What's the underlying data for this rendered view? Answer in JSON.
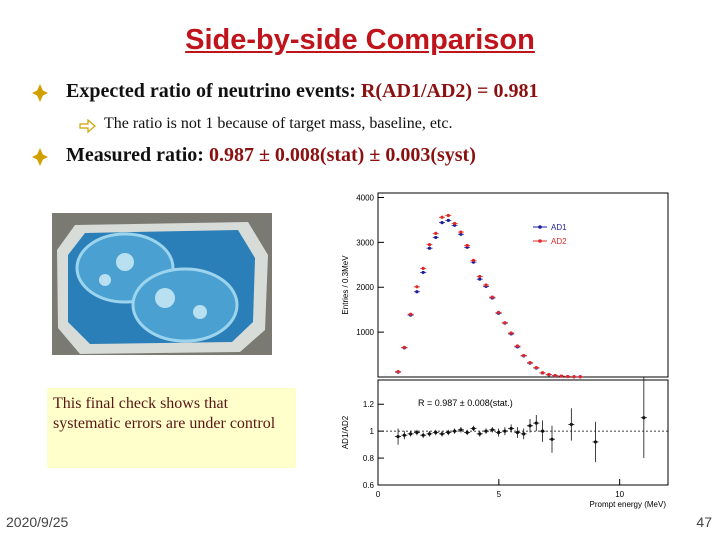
{
  "title": "Side-by-side Comparison",
  "bullets": [
    {
      "text": "Expected ratio of neutrino events:",
      "highlight": "R(AD1/AD2) = 0.981",
      "sub": [
        "The ratio is not 1 because of target mass, baseline, etc."
      ]
    },
    {
      "text": "Measured ratio:",
      "highlight": "0.987 ± 0.008(stat) ± 0.003(syst)"
    }
  ],
  "callout": "This final check shows that systematic errors are under control",
  "footer": {
    "date": "2020/9/25",
    "page": "47"
  },
  "chart_data": [
    {
      "type": "scatter",
      "ylabel": "Entries / 0.3MeV",
      "xlim": [
        0,
        12
      ],
      "ylim": [
        0,
        4100
      ],
      "yticks": [
        1000,
        2000,
        3000,
        4000
      ],
      "series": [
        {
          "name": "AD1",
          "color": "#1c1c9c",
          "x": [
            0.83,
            1.09,
            1.35,
            1.61,
            1.87,
            2.13,
            2.39,
            2.65,
            2.91,
            3.17,
            3.43,
            3.69,
            3.95,
            4.21,
            4.47,
            4.73,
            4.99,
            5.25,
            5.51,
            5.77,
            6.03,
            6.29,
            6.55,
            6.81,
            7.07,
            7.33,
            7.59,
            7.85,
            8.11,
            8.37
          ],
          "values": [
            110,
            650,
            1380,
            1900,
            2330,
            2870,
            3110,
            3440,
            3490,
            3380,
            3180,
            2890,
            2560,
            2180,
            2020,
            1760,
            1420,
            1200,
            960,
            670,
            470,
            310,
            200,
            90,
            50,
            30,
            20,
            10,
            5,
            5
          ]
        },
        {
          "name": "AD2",
          "color": "#e02828",
          "x": [
            0.83,
            1.09,
            1.35,
            1.61,
            1.87,
            2.13,
            2.39,
            2.65,
            2.91,
            3.17,
            3.43,
            3.69,
            3.95,
            4.21,
            4.47,
            4.73,
            4.99,
            5.25,
            5.51,
            5.77,
            6.03,
            6.29,
            6.55,
            6.81,
            7.07,
            7.33,
            7.59,
            7.85,
            8.11,
            8.37
          ],
          "values": [
            120,
            660,
            1400,
            2010,
            2420,
            2950,
            3200,
            3560,
            3600,
            3420,
            3230,
            2930,
            2600,
            2240,
            2050,
            1780,
            1440,
            1210,
            980,
            690,
            480,
            320,
            210,
            95,
            55,
            30,
            20,
            10,
            5,
            5
          ]
        }
      ],
      "legend": "upper right"
    },
    {
      "type": "scatter",
      "ylabel": "AD1/AD2",
      "xlabel": "Prompt energy (MeV)",
      "annotation": "R = 0.987 ± 0.008(stat.)",
      "xlim": [
        0,
        12
      ],
      "ylim": [
        0.6,
        1.38
      ],
      "xticks": [
        0,
        5,
        10
      ],
      "yticks": [
        0.6,
        0.8,
        1,
        1.2
      ],
      "refline": 1,
      "series": [
        {
          "name": "AD1/AD2",
          "color": "#111111",
          "x": [
            0.83,
            1.09,
            1.35,
            1.61,
            1.87,
            2.13,
            2.39,
            2.65,
            2.91,
            3.17,
            3.43,
            3.69,
            3.95,
            4.21,
            4.47,
            4.73,
            4.99,
            5.25,
            5.51,
            5.77,
            6.03,
            6.29,
            6.55,
            6.81,
            7.2,
            8.0,
            9.0,
            11.0
          ],
          "values": [
            0.96,
            0.97,
            0.98,
            0.99,
            0.97,
            0.98,
            0.99,
            0.98,
            0.99,
            1.0,
            1.01,
            0.99,
            1.02,
            0.98,
            1.0,
            1.01,
            0.99,
            1.0,
            1.02,
            0.99,
            0.98,
            1.04,
            1.06,
            1.0,
            0.94,
            1.05,
            0.92,
            1.1
          ],
          "errors": [
            0.06,
            0.03,
            0.02,
            0.02,
            0.02,
            0.02,
            0.02,
            0.02,
            0.02,
            0.02,
            0.02,
            0.02,
            0.02,
            0.02,
            0.02,
            0.02,
            0.03,
            0.03,
            0.03,
            0.04,
            0.04,
            0.05,
            0.06,
            0.08,
            0.1,
            0.12,
            0.15,
            0.3
          ]
        }
      ]
    }
  ]
}
